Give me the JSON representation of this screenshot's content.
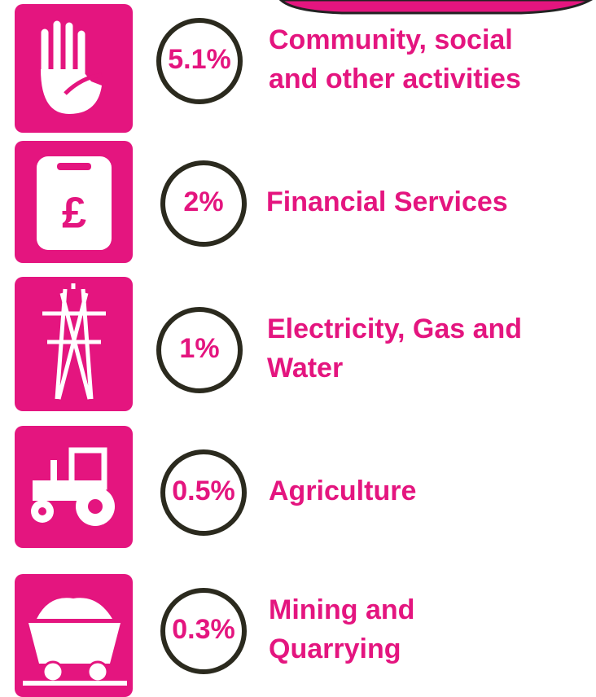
{
  "items": [
    {
      "value": "5.1%",
      "label_lines": [
        "Community, social",
        "and other activities"
      ]
    },
    {
      "value": "2%",
      "label_lines": [
        "Financial Services"
      ]
    },
    {
      "value": "1%",
      "label_lines": [
        "Electricity, Gas and",
        "Water"
      ]
    },
    {
      "value": "0.5%",
      "label_lines": [
        "Agriculture"
      ]
    },
    {
      "value": "0.3%",
      "label_lines": [
        "Mining and",
        "Quarrying"
      ]
    }
  ]
}
